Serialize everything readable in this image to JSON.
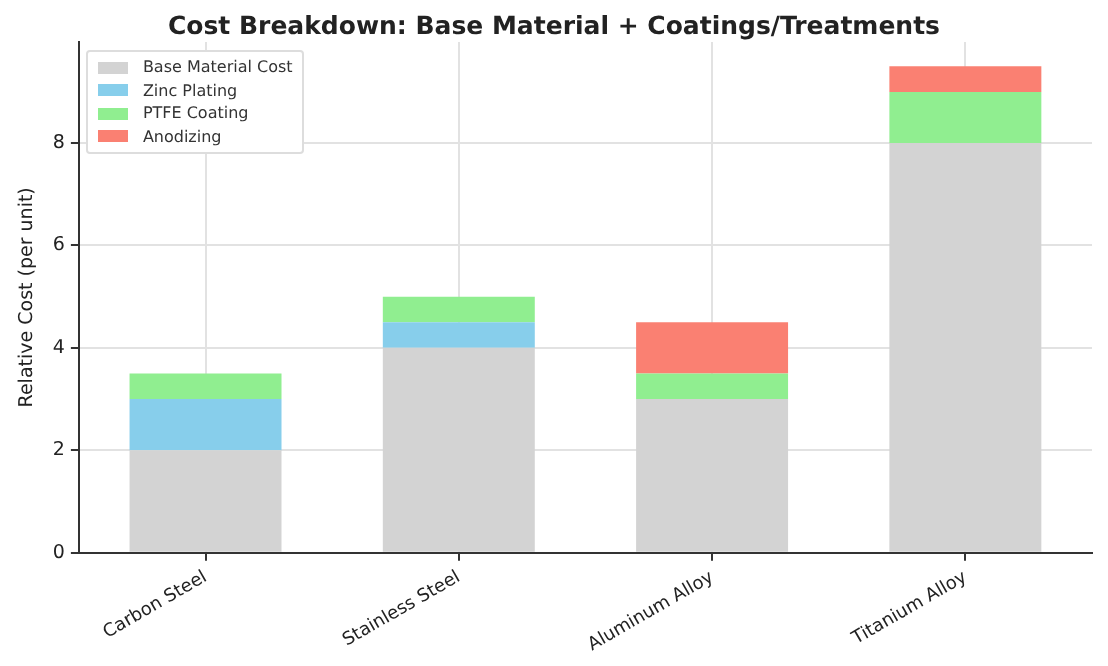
{
  "chart_data": {
    "type": "bar",
    "title": "Cost Breakdown: Base Material + Coatings/Treatments",
    "ylabel": "Relative Cost (per unit)",
    "categories": [
      "Carbon Steel",
      "Stainless Steel",
      "Aluminum Alloy",
      "Titanium Alloy"
    ],
    "stacked": true,
    "series": [
      {
        "name": "Base Material Cost",
        "color": "#d3d3d3",
        "values": [
          2,
          4,
          3,
          8
        ]
      },
      {
        "name": "Zinc Plating",
        "color": "#87ceeb",
        "values": [
          1,
          0.5,
          0,
          0
        ]
      },
      {
        "name": "PTFE Coating",
        "color": "#90ee90",
        "values": [
          0.5,
          0.5,
          0.5,
          1
        ]
      },
      {
        "name": "Anodizing",
        "color": "#fa8072",
        "values": [
          0,
          0,
          1,
          0.5
        ]
      }
    ],
    "ylim": [
      0,
      9.975
    ],
    "yticks": [
      0,
      2,
      4,
      6,
      8
    ],
    "grid": true,
    "legend": "top left"
  }
}
